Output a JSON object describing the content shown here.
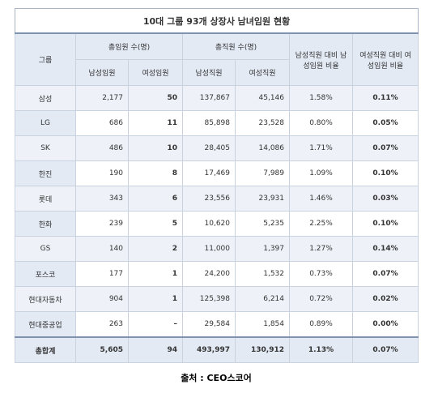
{
  "title": "10대 그룹 93개 상장사 남녀임원 현황",
  "header": {
    "group": "그룹",
    "officers": "총임원 수(명)",
    "employees": "총직원 수(명)",
    "male_ratio": "남성직원 대비 남성임원 비율",
    "female_ratio": "여성직원 대비 여성임원 비율",
    "sub": [
      "남성임원",
      "여성임원",
      "남성직원",
      "여성직원"
    ]
  },
  "table": {
    "rows": [
      [
        "삼성",
        "2,177",
        "50",
        "137,867",
        "45,146",
        "1.58%",
        "0.11%"
      ],
      [
        "LG",
        "686",
        "11",
        "85,898",
        "23,528",
        "0.80%",
        "0.05%"
      ],
      [
        "SK",
        "486",
        "10",
        "28,405",
        "14,086",
        "1.71%",
        "0.07%"
      ],
      [
        "한진",
        "190",
        "8",
        "17,469",
        "7,989",
        "1.09%",
        "0.10%"
      ],
      [
        "롯데",
        "343",
        "6",
        "23,556",
        "23,931",
        "1.46%",
        "0.03%"
      ],
      [
        "한화",
        "239",
        "5",
        "10,620",
        "5,235",
        "2.25%",
        "0.10%"
      ],
      [
        "GS",
        "140",
        "2",
        "11,000",
        "1,397",
        "1.27%",
        "0.14%"
      ],
      [
        "포스코",
        "177",
        "1",
        "24,200",
        "1,532",
        "0.73%",
        "0.07%"
      ],
      [
        "현대자동차",
        "904",
        "1",
        "125,398",
        "6,214",
        "0.72%",
        "0.02%"
      ],
      [
        "현대중공업",
        "263",
        "–",
        "29,584",
        "1,854",
        "0.89%",
        "0.00%"
      ],
      [
        "총합계",
        "5,605",
        "94",
        "493,997",
        "130,912",
        "1.13%",
        "0.07%"
      ]
    ]
  },
  "footer": "출처 : CEO스코어"
}
